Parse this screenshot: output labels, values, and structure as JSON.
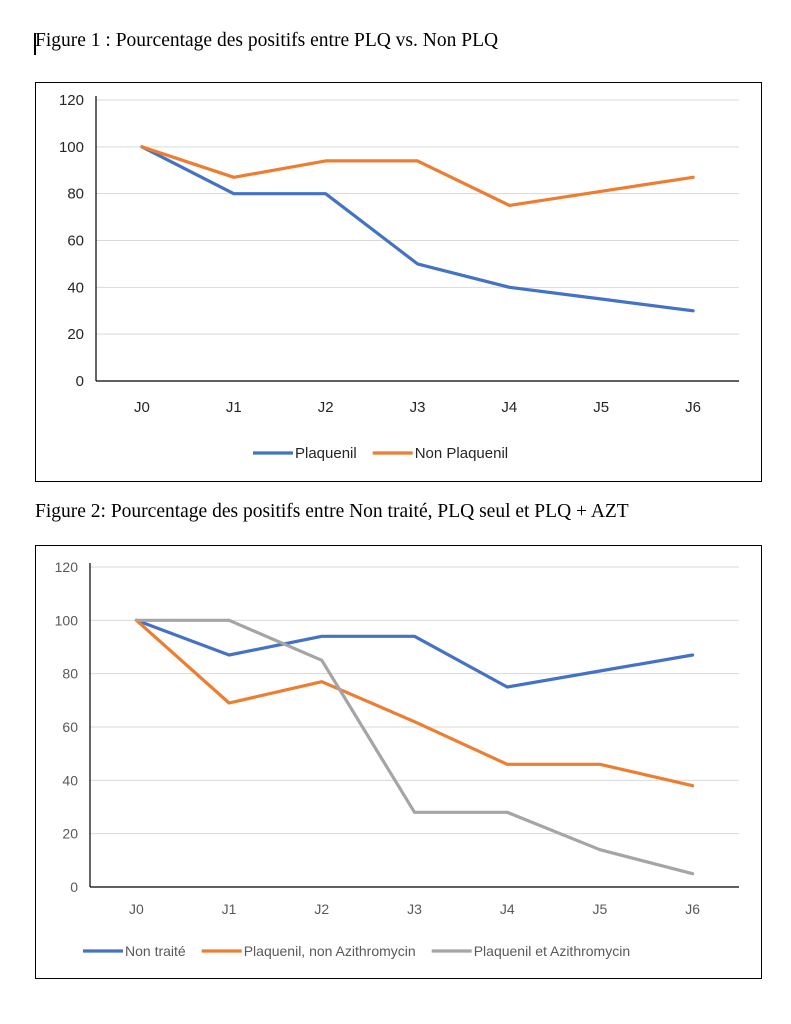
{
  "captions": {
    "figure1": "Figure 1 : Pourcentage des positifs entre PLQ vs. Non PLQ",
    "figure2": "Figure 2: Pourcentage des positifs entre Non traité, PLQ seul et PLQ + AZT"
  },
  "chart_data": [
    {
      "type": "line",
      "title": "",
      "xlabel": "",
      "ylabel": "",
      "categories": [
        "J0",
        "J1",
        "J2",
        "J3",
        "J4",
        "J5",
        "J6"
      ],
      "yticks": [
        0,
        20,
        40,
        60,
        80,
        100,
        120
      ],
      "ylim": [
        0,
        120
      ],
      "grid": true,
      "legend": "bottom",
      "series": [
        {
          "name": "Plaquenil",
          "color": "#4472C4",
          "values": [
            100,
            80,
            80,
            50,
            40,
            35,
            30
          ]
        },
        {
          "name": "Non Plaquenil",
          "color": "#ED7D31",
          "values": [
            100,
            87,
            94,
            94,
            75,
            81,
            87
          ]
        }
      ]
    },
    {
      "type": "line",
      "title": "",
      "xlabel": "",
      "ylabel": "",
      "categories": [
        "J0",
        "J1",
        "J2",
        "J3",
        "J4",
        "J5",
        "J6"
      ],
      "yticks": [
        0,
        20,
        40,
        60,
        80,
        100,
        120
      ],
      "ylim": [
        0,
        120
      ],
      "grid": true,
      "legend": "bottom",
      "series": [
        {
          "name": "Non traité",
          "color": "#4472C4",
          "values": [
            100,
            87,
            94,
            94,
            75,
            81,
            87
          ]
        },
        {
          "name": "Plaquenil, non Azithromycin",
          "color": "#ED7D31",
          "values": [
            100,
            69,
            77,
            62,
            46,
            46,
            38
          ]
        },
        {
          "name": "Plaquenil et Azithromycin",
          "color": "#A5A5A5",
          "values": [
            100,
            100,
            85,
            28,
            28,
            14,
            5
          ]
        }
      ]
    }
  ]
}
